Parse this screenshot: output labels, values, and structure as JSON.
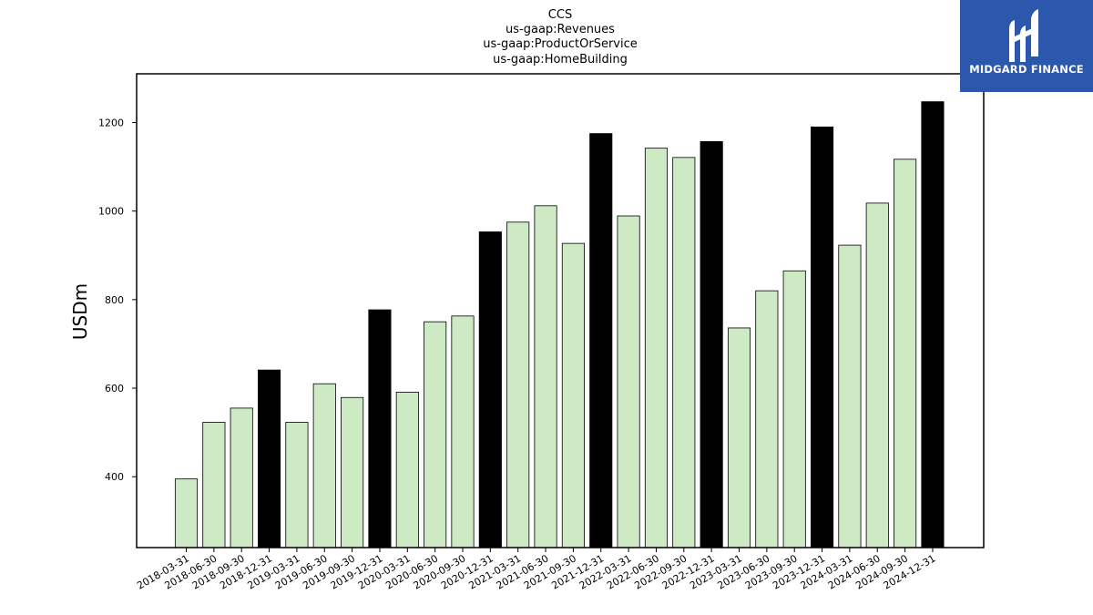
{
  "brand": {
    "name": "MIDGARD FINANCE",
    "color": "#2b57ad"
  },
  "chart_data": {
    "type": "bar",
    "title_lines": [
      "CCS",
      "us-gaap:Revenues",
      "us-gaap:ProductOrService",
      "us-gaap:HomeBuilding"
    ],
    "xlabel": "",
    "ylabel": "USDm",
    "ylim": [
      240,
      1310
    ],
    "yticks": [
      400,
      600,
      800,
      1000,
      1200
    ],
    "grid": false,
    "colors": {
      "quarter": "#cdeac5",
      "year_end": "#000000",
      "edge": "#000000"
    },
    "categories": [
      "2018-03-31",
      "2018-06-30",
      "2018-09-30",
      "2018-12-31",
      "2019-03-31",
      "2019-06-30",
      "2019-09-30",
      "2019-12-31",
      "2020-03-31",
      "2020-06-30",
      "2020-09-30",
      "2020-12-31",
      "2021-03-31",
      "2021-06-30",
      "2021-09-30",
      "2021-12-31",
      "2022-03-31",
      "2022-06-30",
      "2022-09-30",
      "2022-12-31",
      "2023-03-31",
      "2023-06-30",
      "2023-09-30",
      "2023-12-31",
      "2024-03-31",
      "2024-06-30",
      "2024-09-30",
      "2024-12-31"
    ],
    "values": [
      395,
      523,
      555,
      641,
      523,
      610,
      579,
      777,
      591,
      750,
      763,
      953,
      975,
      1012,
      927,
      1175,
      989,
      1142,
      1121,
      1157,
      736,
      820,
      865,
      1190,
      923,
      1018,
      1117,
      1247
    ],
    "year_end": [
      false,
      false,
      false,
      true,
      false,
      false,
      false,
      true,
      false,
      false,
      false,
      true,
      false,
      false,
      false,
      true,
      false,
      false,
      false,
      true,
      false,
      false,
      false,
      true,
      false,
      false,
      false,
      true
    ]
  }
}
